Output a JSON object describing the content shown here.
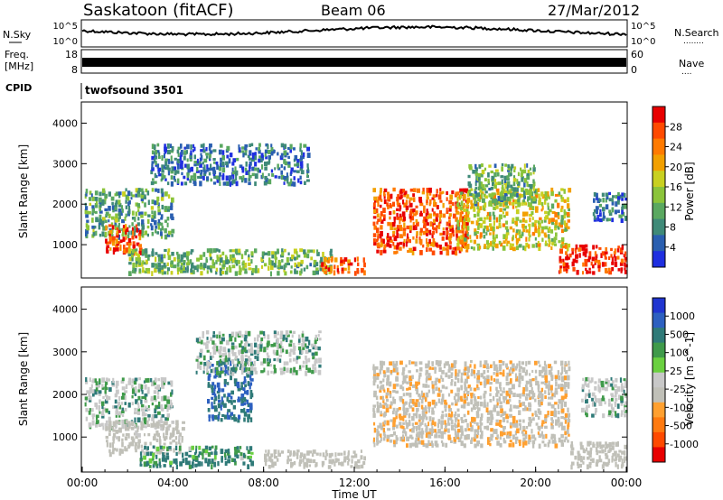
{
  "header": {
    "station": "Saskatoon (fitACF)",
    "beam": "Beam 06",
    "date": "27/Mar/2012"
  },
  "strip_nsky": {
    "left_label": "N.Sky",
    "left_ticks": [
      "10^5",
      "10^0"
    ],
    "right_ticks": [
      "10^5",
      "10^0"
    ],
    "right_label": "N.Search",
    "right_dots": "........"
  },
  "strip_freq": {
    "left_label_1": "Freq.",
    "left_label_2": "[MHz]",
    "left_ticks": [
      "18",
      "8"
    ],
    "right_ticks": [
      "60",
      "0"
    ],
    "right_label": "Nave",
    "right_dots": "...."
  },
  "strip_cpid": {
    "label": "CPID",
    "program": "twofsound 3501"
  },
  "colors": {
    "power": [
      "#1f2fe0",
      "#2a5fb0",
      "#3f8a78",
      "#5aa860",
      "#8bc43a",
      "#c8d020",
      "#f2a000",
      "#ff7a00",
      "#ff4a00",
      "#e80000"
    ],
    "velocity": [
      "#2035d0",
      "#2d60c0",
      "#2f7a78",
      "#3f9a4a",
      "#6ad040",
      "#c8c8c8",
      "#c0c0b8",
      "#ffa030",
      "#ff7a10",
      "#ff4a00",
      "#e80000"
    ]
  },
  "chart_data": [
    {
      "type": "heatmap",
      "name": "power",
      "ylabel": "Slant Range [km]",
      "yticks": [
        "1000",
        "2000",
        "3000",
        "4000"
      ],
      "ylim": [
        200,
        4500
      ],
      "xlim": [
        0,
        24
      ],
      "colorbar": {
        "label": "Power [dB]",
        "ticks": [
          "4",
          "8",
          "12",
          "16",
          "20",
          "24",
          "28"
        ],
        "range": [
          0,
          31
        ]
      },
      "echo_regions": [
        {
          "t0": 0.1,
          "t1": 4.0,
          "r0": 1200,
          "r1": 2400,
          "level": 10
        },
        {
          "t0": 1.0,
          "t1": 2.6,
          "r0": 800,
          "r1": 1500,
          "level": 26
        },
        {
          "t0": 2.0,
          "t1": 11.0,
          "r0": 300,
          "r1": 900,
          "level": 12
        },
        {
          "t0": 3.0,
          "t1": 10.0,
          "r0": 2500,
          "r1": 3500,
          "level": 6
        },
        {
          "t0": 10.5,
          "t1": 12.5,
          "r0": 300,
          "r1": 700,
          "level": 24
        },
        {
          "t0": 12.8,
          "t1": 17.0,
          "r0": 800,
          "r1": 2400,
          "level": 26
        },
        {
          "t0": 16.5,
          "t1": 21.5,
          "r0": 900,
          "r1": 2400,
          "level": 17
        },
        {
          "t0": 17.0,
          "t1": 20.0,
          "r0": 2000,
          "r1": 3000,
          "level": 11
        },
        {
          "t0": 21.0,
          "t1": 24.0,
          "r0": 300,
          "r1": 1000,
          "level": 28
        },
        {
          "t0": 22.5,
          "t1": 24.0,
          "r0": 1600,
          "r1": 2300,
          "level": 6
        }
      ]
    },
    {
      "type": "heatmap",
      "name": "velocity",
      "xlabel": "Time UT",
      "ylabel": "Slant Range [km]",
      "yticks": [
        "1000",
        "2000",
        "3000",
        "4000"
      ],
      "ylim": [
        200,
        4500
      ],
      "xticks": [
        "00:00",
        "04:00",
        "08:00",
        "12:00",
        "16:00",
        "20:00",
        "00:00"
      ],
      "xlim": [
        0,
        24
      ],
      "colorbar": {
        "label": "Velocity [m s^-1]",
        "ticks": [
          "1000",
          "500",
          "100",
          "25",
          "-25",
          "-100",
          "-500",
          "-1000"
        ]
      },
      "echo_regions": [
        {
          "t0": 0.1,
          "t1": 4.0,
          "r0": 1200,
          "r1": 2400,
          "value": 0
        },
        {
          "t0": 1.0,
          "t1": 4.5,
          "r0": 600,
          "r1": 1400,
          "value": -150
        },
        {
          "t0": 2.5,
          "t1": 7.5,
          "r0": 300,
          "r1": 800,
          "value": 80
        },
        {
          "t0": 5.5,
          "t1": 7.5,
          "r0": 1400,
          "r1": 2800,
          "value": 300
        },
        {
          "t0": 5.0,
          "t1": 10.5,
          "r0": 2500,
          "r1": 3500,
          "value": 0
        },
        {
          "t0": 8.0,
          "t1": 12.5,
          "r0": 300,
          "r1": 700,
          "value": -200
        },
        {
          "t0": 12.8,
          "t1": 21.5,
          "r0": 800,
          "r1": 2800,
          "value": -250
        },
        {
          "t0": 21.5,
          "t1": 24.0,
          "r0": 300,
          "r1": 900,
          "value": -200
        },
        {
          "t0": 22.0,
          "t1": 24.0,
          "r0": 1500,
          "r1": 2400,
          "value": 0
        }
      ]
    }
  ]
}
